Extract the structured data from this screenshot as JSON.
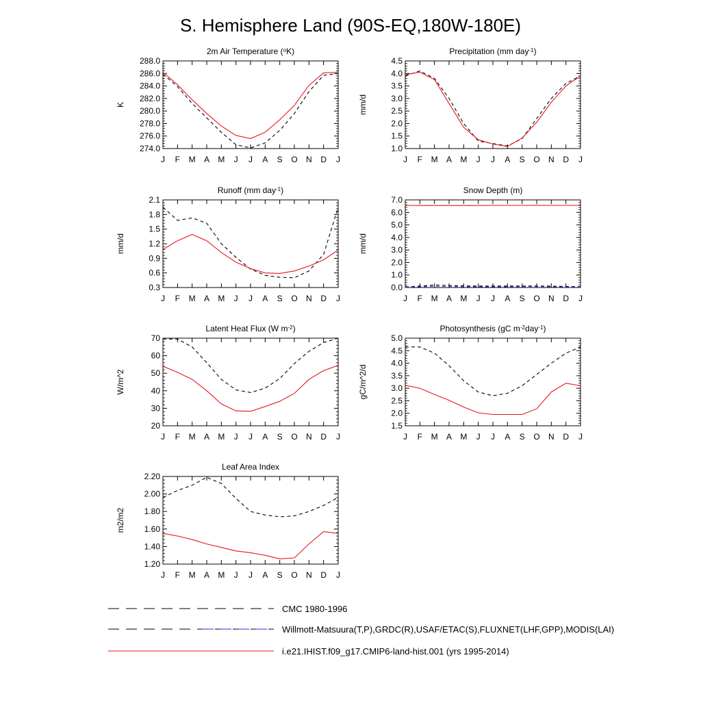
{
  "figure": {
    "title": "S. Hemisphere Land (90S-EQ,180W-180E)"
  },
  "legend": [
    {
      "label": "CMC 1980-1996",
      "color": "#000000",
      "style": "dashed"
    },
    {
      "label": "Willmott-Matsuura(T,P),GRDC(R),USAF/ETAC(S),FLUXNET(LHF,GPP),MODIS(LAI)",
      "color": "#000000",
      "style": "dashed"
    },
    {
      "label": "i.e21.IHIST.f09_g17.CMIP6-land-hist.001 (yrs 1995-2014)",
      "color": "#e8141e",
      "style": "solid"
    }
  ],
  "chart_data": [
    {
      "type": "line",
      "title": "2m Air Temperature (",
      "title_sup": "o",
      "title_end": "K)",
      "ylabel": "K",
      "ylim": [
        274,
        288
      ],
      "yticks": [
        "274.0",
        "276.0",
        "278.0",
        "280.0",
        "282.0",
        "284.0",
        "286.0",
        "288.0"
      ],
      "categories": [
        "J",
        "F",
        "M",
        "A",
        "M",
        "J",
        "J",
        "A",
        "S",
        "O",
        "N",
        "D",
        "J"
      ],
      "series": [
        {
          "color": "#000000",
          "style": "dashed",
          "values": [
            285.9,
            283.9,
            281.2,
            278.9,
            276.6,
            274.6,
            274.1,
            274.9,
            276.9,
            279.6,
            283.1,
            285.7,
            286.0
          ]
        },
        {
          "color": "#e8141e",
          "style": "solid",
          "values": [
            286.2,
            284.2,
            281.8,
            279.6,
            277.6,
            276.1,
            275.6,
            276.6,
            278.6,
            280.9,
            284.1,
            286.1,
            286.2
          ]
        }
      ]
    },
    {
      "type": "line",
      "title": "Precipitation (mm day",
      "title_sup": "-1",
      "title_end": ")",
      "ylabel": "mm/d",
      "ylim": [
        1.0,
        4.5
      ],
      "yticks": [
        "1.0",
        "1.5",
        "2.0",
        "2.5",
        "3.0",
        "3.5",
        "4.0",
        "4.5"
      ],
      "categories": [
        "J",
        "F",
        "M",
        "A",
        "M",
        "J",
        "J",
        "A",
        "S",
        "O",
        "N",
        "D",
        "J"
      ],
      "series": [
        {
          "color": "#000000",
          "style": "dashed",
          "values": [
            3.9,
            4.1,
            3.8,
            3.0,
            2.0,
            1.3,
            1.2,
            1.1,
            1.4,
            2.2,
            3.0,
            3.6,
            3.9
          ]
        },
        {
          "color": "#e8141e",
          "style": "solid",
          "values": [
            3.95,
            4.05,
            3.75,
            2.8,
            1.85,
            1.35,
            1.18,
            1.08,
            1.42,
            2.05,
            2.85,
            3.5,
            3.9
          ]
        }
      ]
    },
    {
      "type": "line",
      "title": "Runoff (mm day",
      "title_sup": "-1",
      "title_end": ")",
      "ylabel": "mm/d",
      "ylim": [
        0.3,
        2.1
      ],
      "yticks": [
        "0.3",
        "0.6",
        "0.9",
        "1.2",
        "1.5",
        "1.8",
        "2.1"
      ],
      "categories": [
        "J",
        "F",
        "M",
        "A",
        "M",
        "J",
        "J",
        "A",
        "S",
        "O",
        "N",
        "D",
        "J"
      ],
      "series": [
        {
          "color": "#000000",
          "style": "dashed",
          "values": [
            1.95,
            1.68,
            1.73,
            1.62,
            1.2,
            0.92,
            0.68,
            0.55,
            0.51,
            0.5,
            0.64,
            0.98,
            1.95
          ]
        },
        {
          "color": "#e8141e",
          "style": "solid",
          "values": [
            1.08,
            1.26,
            1.39,
            1.26,
            1.02,
            0.82,
            0.69,
            0.6,
            0.59,
            0.64,
            0.74,
            0.87,
            1.07
          ]
        }
      ]
    },
    {
      "type": "line",
      "title": "Snow Depth (m)",
      "title_sup": "",
      "title_end": "",
      "ylabel": "mm/d",
      "ylim": [
        0.0,
        7.0
      ],
      "yticks": [
        "0.0",
        "1.0",
        "2.0",
        "3.0",
        "4.0",
        "5.0",
        "6.0",
        "7.0"
      ],
      "categories": [
        "J",
        "F",
        "M",
        "A",
        "M",
        "J",
        "J",
        "A",
        "S",
        "O",
        "N",
        "D",
        "J"
      ],
      "series": [
        {
          "color": "#000000",
          "style": "dashed",
          "values": [
            0.05,
            0.12,
            0.2,
            0.17,
            0.13,
            0.12,
            0.12,
            0.12,
            0.12,
            0.12,
            0.11,
            0.09,
            0.06
          ]
        },
        {
          "color": "#2a2ae0",
          "style": "dashed",
          "values": [
            0.02,
            0.06,
            0.1,
            0.08,
            0.06,
            0.06,
            0.06,
            0.06,
            0.07,
            0.08,
            0.06,
            0.04,
            0.02
          ]
        },
        {
          "color": "#e8141e",
          "style": "solid",
          "values": [
            6.56,
            6.55,
            6.55,
            6.55,
            6.55,
            6.55,
            6.56,
            6.56,
            6.56,
            6.57,
            6.56,
            6.56,
            6.56
          ]
        }
      ]
    },
    {
      "type": "line",
      "title": "Latent Heat Flux (W m",
      "title_sup": "-2",
      "title_end": ")",
      "ylabel": "W/m^2",
      "ylim": [
        20,
        70
      ],
      "yticks": [
        "20",
        "30",
        "40",
        "50",
        "60",
        "70"
      ],
      "categories": [
        "J",
        "F",
        "M",
        "A",
        "M",
        "J",
        "J",
        "A",
        "S",
        "O",
        "N",
        "D",
        "J"
      ],
      "series": [
        {
          "color": "#000000",
          "style": "dashed",
          "values": [
            69.5,
            69.5,
            65,
            56,
            46.5,
            40.5,
            39,
            41.5,
            47,
            55.5,
            62.5,
            67.5,
            70
          ]
        },
        {
          "color": "#e8141e",
          "style": "solid",
          "values": [
            54,
            50.5,
            46.5,
            40,
            32.5,
            28.5,
            28.3,
            31,
            34,
            38.5,
            46.5,
            51.5,
            54.5
          ]
        }
      ]
    },
    {
      "type": "line",
      "title": "Photosynthesis (gC m",
      "title_sup": "-2",
      "title_mid": "day",
      "title_sup2": "-1",
      "title_end": ")",
      "ylabel": "gC/m^2/d",
      "ylim": [
        1.5,
        5.0
      ],
      "yticks": [
        "1.5",
        "2.0",
        "2.5",
        "3.0",
        "3.5",
        "4.0",
        "4.5",
        "5.0"
      ],
      "categories": [
        "J",
        "F",
        "M",
        "A",
        "M",
        "J",
        "J",
        "A",
        "S",
        "O",
        "N",
        "D",
        "J"
      ],
      "series": [
        {
          "color": "#000000",
          "style": "dashed",
          "values": [
            4.65,
            4.65,
            4.4,
            3.9,
            3.3,
            2.85,
            2.7,
            2.8,
            3.1,
            3.55,
            4.0,
            4.4,
            4.65
          ]
        },
        {
          "color": "#e8141e",
          "style": "solid",
          "values": [
            3.12,
            3.0,
            2.75,
            2.52,
            2.25,
            2.02,
            1.95,
            1.95,
            1.95,
            2.18,
            2.85,
            3.2,
            3.1
          ]
        }
      ]
    },
    {
      "type": "line",
      "title": "Leaf Area Index",
      "title_sup": "",
      "title_end": "",
      "ylabel": "m2/m2",
      "ylim": [
        1.2,
        2.2
      ],
      "yticks": [
        "1.20",
        "1.40",
        "1.60",
        "1.80",
        "2.00",
        "2.20"
      ],
      "categories": [
        "J",
        "F",
        "M",
        "A",
        "M",
        "J",
        "J",
        "A",
        "S",
        "O",
        "N",
        "D",
        "J"
      ],
      "series": [
        {
          "color": "#000000",
          "style": "dashed",
          "values": [
            1.96,
            2.04,
            2.1,
            2.19,
            2.12,
            1.95,
            1.8,
            1.76,
            1.74,
            1.75,
            1.8,
            1.87,
            1.96
          ]
        },
        {
          "color": "#e8141e",
          "style": "solid",
          "values": [
            1.55,
            1.52,
            1.48,
            1.43,
            1.39,
            1.35,
            1.33,
            1.3,
            1.26,
            1.27,
            1.43,
            1.57,
            1.55
          ]
        }
      ]
    }
  ]
}
